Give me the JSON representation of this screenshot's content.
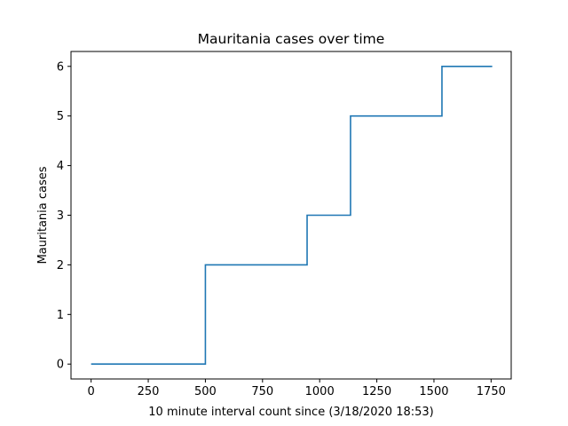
{
  "chart_data": {
    "type": "line",
    "drawstyle": "step",
    "title": "Mauritania cases over time",
    "xlabel": "10 minute interval count since (3/18/2020 18:53)",
    "ylabel": "Mauritania cases",
    "xlim": [
      -88,
      1838
    ],
    "ylim": [
      -0.3,
      6.3
    ],
    "xticks": [
      0,
      250,
      500,
      750,
      1000,
      1250,
      1500,
      1750
    ],
    "yticks": [
      0,
      1,
      2,
      3,
      4,
      5,
      6
    ],
    "grid": false,
    "line_color": "#1f77b4",
    "series": [
      {
        "x": [
          0,
          500,
          500,
          945,
          945,
          1135,
          1135,
          1535,
          1535,
          1755
        ],
        "y": [
          0,
          0,
          2,
          2,
          3,
          3,
          5,
          5,
          6,
          6
        ]
      }
    ]
  }
}
